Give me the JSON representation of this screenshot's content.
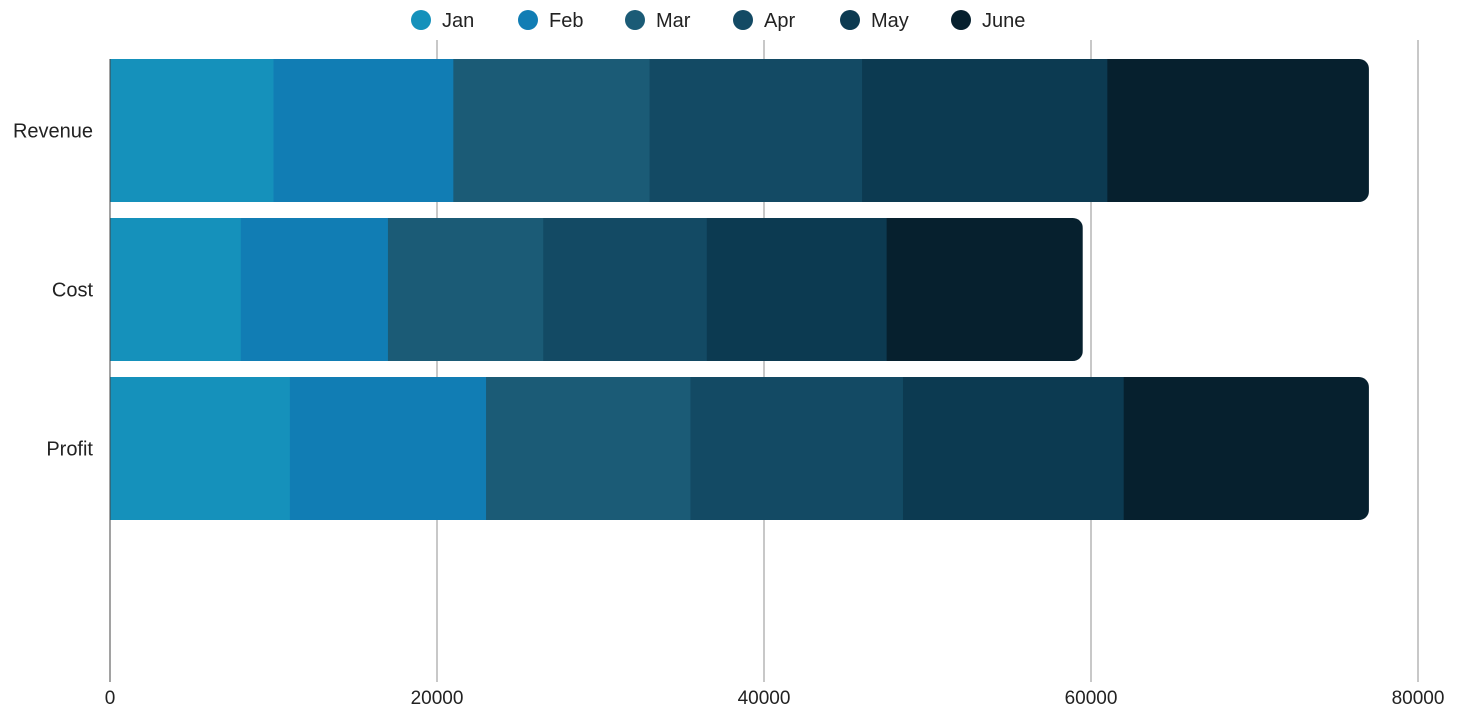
{
  "chart_data": {
    "type": "bar",
    "orientation": "horizontal",
    "stacked": true,
    "title": "",
    "xlabel": "",
    "ylabel": "",
    "categories": [
      "Revenue",
      "Cost",
      "Profit"
    ],
    "series": [
      {
        "name": "Jan",
        "color": "#1591bb",
        "values": [
          10000,
          8000,
          11000
        ]
      },
      {
        "name": "Feb",
        "color": "#117db4",
        "values": [
          11000,
          9000,
          12000
        ]
      },
      {
        "name": "Mar",
        "color": "#1b5b76",
        "values": [
          12000,
          9500,
          12500
        ]
      },
      {
        "name": "Apr",
        "color": "#134a64",
        "values": [
          13000,
          10000,
          13000
        ]
      },
      {
        "name": "May",
        "color": "#0c3a51",
        "values": [
          15000,
          11000,
          13500
        ]
      },
      {
        "name": "June",
        "color": "#06202e",
        "values": [
          16000,
          12000,
          15000
        ]
      }
    ],
    "xlim": [
      0,
      80000
    ],
    "xticks": [
      "0",
      "20000",
      "40000",
      "60000",
      "80000"
    ],
    "grid": true,
    "legend_position": "top"
  }
}
